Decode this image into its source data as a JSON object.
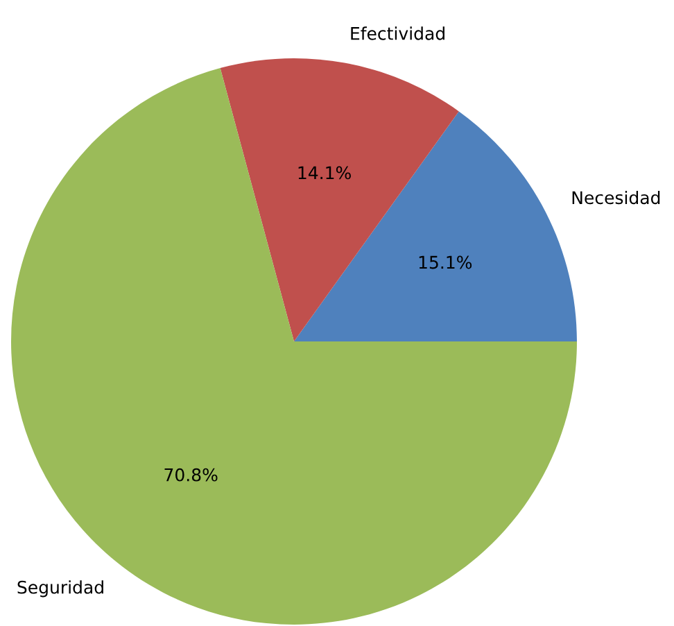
{
  "chart_data": {
    "type": "pie",
    "categories": [
      "Necesidad",
      "Efectividad",
      "Seguridad"
    ],
    "values": [
      15.1,
      14.1,
      70.8
    ],
    "value_labels": [
      "15.1%",
      "14.1%",
      "70.8%"
    ],
    "colors": [
      "#4f81bd",
      "#c0504d",
      "#9bbb59"
    ]
  }
}
